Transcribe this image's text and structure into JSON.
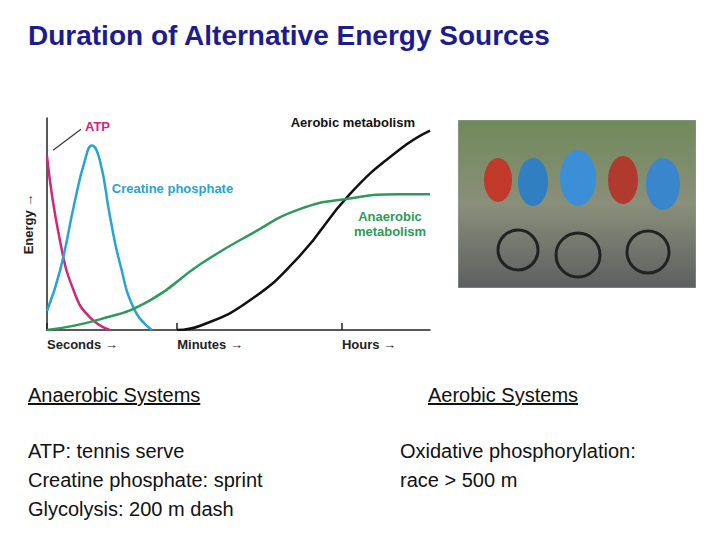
{
  "title": "Duration of Alternative Energy Sources",
  "chart_data": {
    "type": "line",
    "y_label": "Energy →",
    "xlim": [
      0,
      100
    ],
    "xticks": [
      {
        "value": 0,
        "label": "Seconds →"
      },
      {
        "value": 34,
        "label": "Minutes →"
      },
      {
        "value": 77,
        "label": "Hours →"
      }
    ],
    "ylim": [
      0,
      100
    ],
    "tick_labels": "x",
    "grid": false,
    "series": [
      {
        "name": "ATP",
        "color": "#d1277a",
        "x": [
          0,
          3.4,
          7.3,
          11.2,
          16.4
        ],
        "values": [
          82,
          42,
          17,
          6,
          0
        ]
      },
      {
        "name": "Creatine phosphate",
        "color": "#27a3d6",
        "x": [
          0,
          3.4,
          7.3,
          9.9,
          11.7,
          13.8,
          16.4,
          19.1,
          23,
          27.4
        ],
        "values": [
          9,
          28,
          61,
          80,
          87,
          80,
          54,
          31,
          9,
          0
        ]
      },
      {
        "name": "Aerobic metabolism",
        "color": "#111111",
        "x": [
          34,
          40,
          53,
          66,
          79,
          92,
          100
        ],
        "values": [
          0,
          2,
          14,
          35,
          64,
          85,
          94
        ]
      },
      {
        "name": "Anaerobic metabolism",
        "color": "#2e9a5a",
        "x": [
          0,
          13.8,
          26.9,
          40,
          53,
          66,
          79,
          92,
          100
        ],
        "values": [
          0,
          5,
          14,
          31,
          45,
          57,
          62,
          64,
          64
        ]
      }
    ]
  },
  "columns": [
    {
      "heading": "Anaerobic Systems",
      "lines": [
        "ATP: tennis serve",
        "Creatine phosphate: sprint",
        "Glycolysis: 200 m dash"
      ]
    },
    {
      "heading": "Aerobic Systems",
      "lines": [
        "Oxidative phosphorylation:",
        "race > 500 m"
      ]
    }
  ]
}
